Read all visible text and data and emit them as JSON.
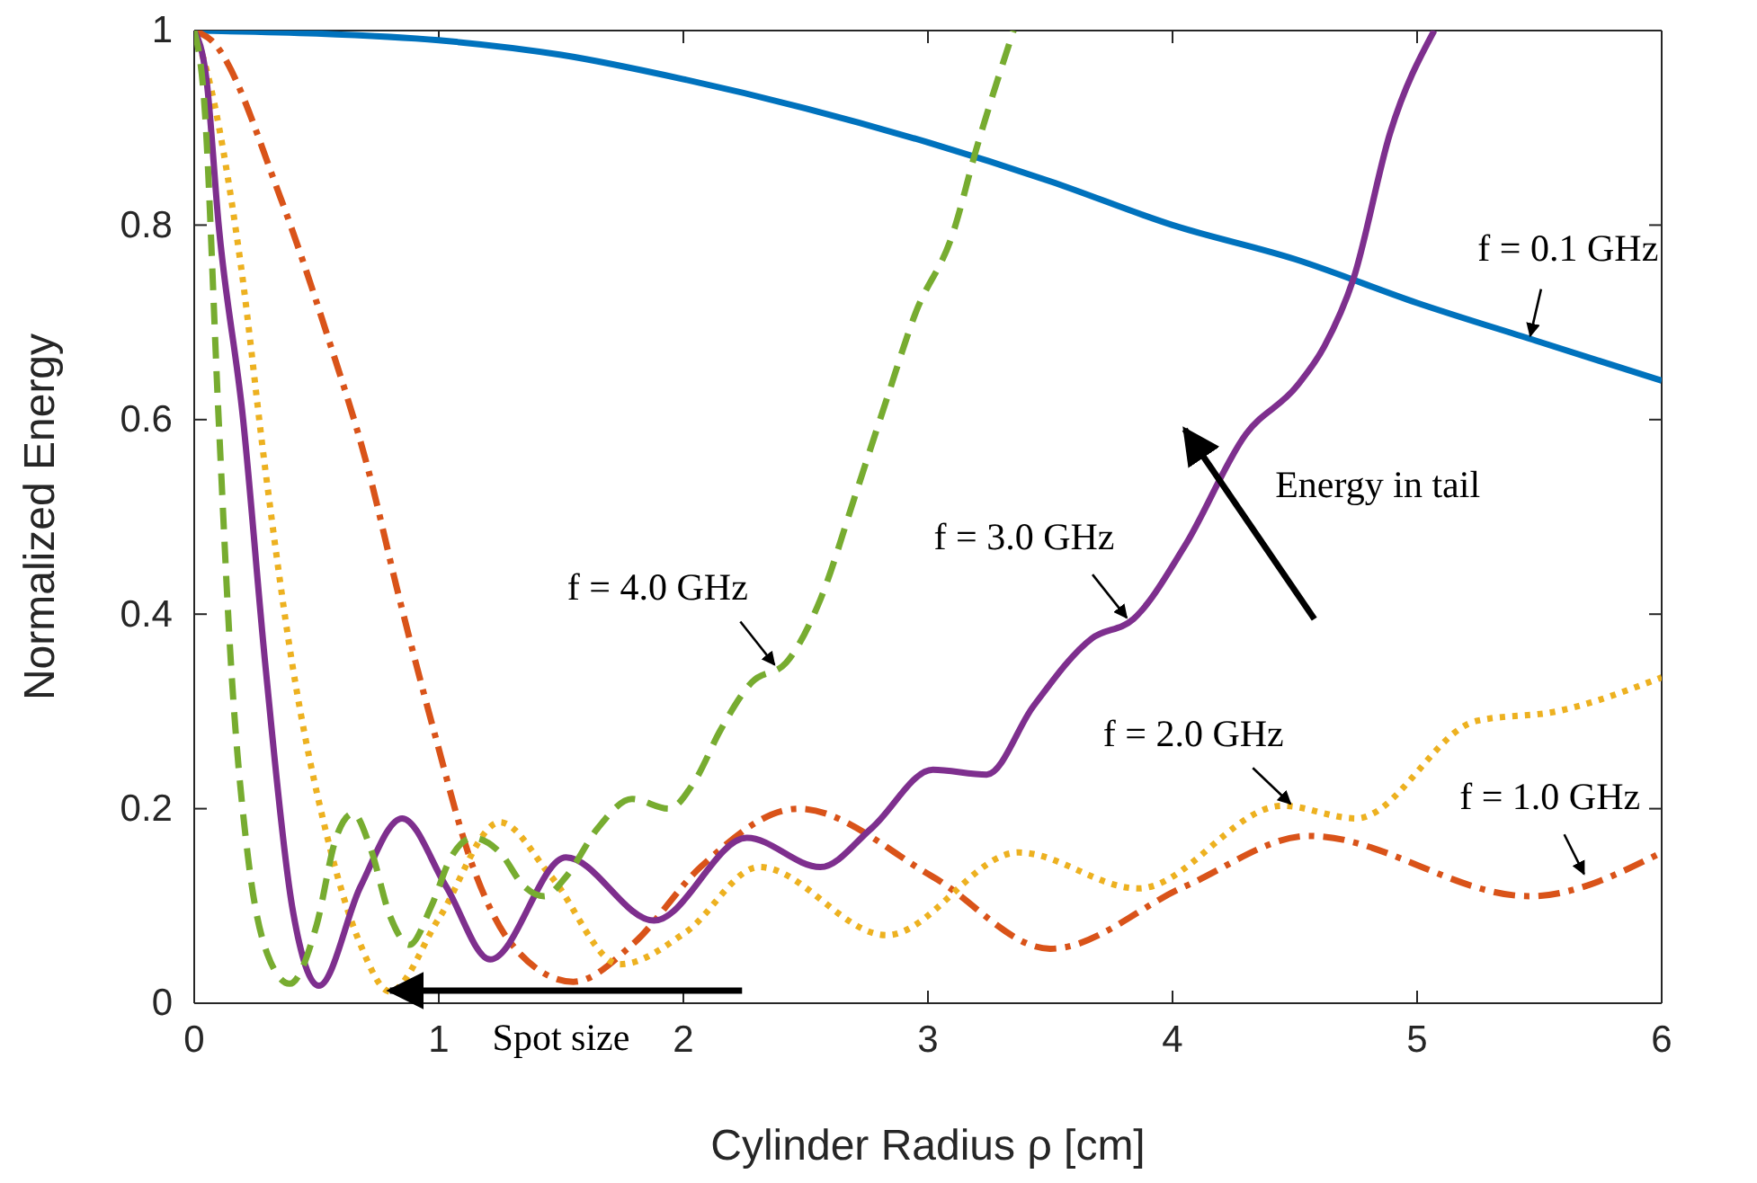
{
  "chart_data": {
    "type": "line",
    "xlabel": "Cylinder Radius ρ [cm]",
    "ylabel": "Normalized Energy",
    "xlim": [
      0,
      6
    ],
    "ylim": [
      0,
      1
    ],
    "xticks": [
      0,
      1,
      2,
      3,
      4,
      5,
      6
    ],
    "yticks": [
      0,
      0.2,
      0.4,
      0.6,
      0.8,
      1
    ],
    "grid": false,
    "series": [
      {
        "name": "f = 0.1 GHz",
        "color": "#0072bd",
        "line_style": "solid",
        "x": [
          0,
          0.5,
          1,
          1.5,
          2,
          2.5,
          3,
          3.5,
          4,
          4.5,
          5,
          5.5,
          6
        ],
        "values": [
          1,
          0.997,
          0.99,
          0.975,
          0.95,
          0.92,
          0.885,
          0.845,
          0.8,
          0.765,
          0.72,
          0.68,
          0.64
        ]
      },
      {
        "name": "f = 1.0 GHz",
        "color": "#d95319",
        "line_style": "dashdot",
        "x": [
          0,
          0.07,
          0.35,
          0.54,
          0.71,
          0.84,
          0.98,
          1.14,
          1.3,
          1.55,
          1.79,
          2.07,
          2.47,
          3.02,
          3.5,
          4.05,
          4.56,
          5.46,
          6
        ],
        "values": [
          1,
          0.99,
          0.83,
          0.69,
          0.55,
          0.415,
          0.28,
          0.14,
          0.06,
          0.022,
          0.06,
          0.14,
          0.2,
          0.13,
          0.056,
          0.12,
          0.172,
          0.11,
          0.155
        ]
      },
      {
        "name": "f = 2.0 GHz",
        "color": "#edb120",
        "line_style": "dotted",
        "x": [
          0,
          0.05,
          0.19,
          0.29,
          0.4,
          0.54,
          0.68,
          0.8,
          1.0,
          1.25,
          1.46,
          1.74,
          2.01,
          2.31,
          2.83,
          3.37,
          3.86,
          4.45,
          4.75,
          5.24,
          5.57,
          6
        ],
        "values": [
          1,
          0.96,
          0.76,
          0.55,
          0.35,
          0.175,
          0.06,
          0.012,
          0.087,
          0.186,
          0.13,
          0.04,
          0.073,
          0.14,
          0.07,
          0.155,
          0.118,
          0.203,
          0.19,
          0.29,
          0.3,
          0.335
        ]
      },
      {
        "name": "f = 3.0 GHz",
        "color": "#7e2f8e",
        "line_style": "solid",
        "x": [
          0,
          0.05,
          0.1,
          0.2,
          0.29,
          0.4,
          0.51,
          0.68,
          0.85,
          1.03,
          1.21,
          1.52,
          1.88,
          2.26,
          2.56,
          2.77,
          3.02,
          3.24,
          3.43,
          3.67,
          3.84,
          4.05,
          4.3,
          4.51,
          4.62,
          4.74,
          4.89,
          5.07
        ],
        "values": [
          1,
          0.95,
          0.8,
          0.6,
          0.35,
          0.1,
          0.018,
          0.12,
          0.19,
          0.12,
          0.045,
          0.15,
          0.085,
          0.17,
          0.14,
          0.18,
          0.24,
          0.235,
          0.305,
          0.375,
          0.395,
          0.47,
          0.585,
          0.635,
          0.675,
          0.745,
          0.895,
          1
        ]
      },
      {
        "name": "f = 4.0 GHz",
        "color": "#77ac30",
        "line_style": "dashed",
        "x": [
          0,
          0.04,
          0.1,
          0.15,
          0.22,
          0.3,
          0.39,
          0.5,
          0.58,
          0.65,
          0.72,
          0.8,
          0.88,
          0.97,
          1.05,
          1.14,
          1.25,
          1.35,
          1.43,
          1.52,
          1.65,
          1.79,
          1.94,
          2.05,
          2.15,
          2.28,
          2.42,
          2.56,
          2.7,
          2.83,
          2.95,
          3.1,
          3.2,
          3.35
        ],
        "values": [
          1,
          0.93,
          0.6,
          0.35,
          0.15,
          0.05,
          0.02,
          0.08,
          0.17,
          0.195,
          0.16,
          0.09,
          0.06,
          0.1,
          0.15,
          0.17,
          0.155,
          0.12,
          0.11,
          0.13,
          0.18,
          0.21,
          0.2,
          0.23,
          0.28,
          0.33,
          0.35,
          0.415,
          0.52,
          0.62,
          0.71,
          0.79,
          0.88,
          1
        ]
      }
    ],
    "annotations": [
      "Energy in tail",
      "Spot size"
    ]
  }
}
